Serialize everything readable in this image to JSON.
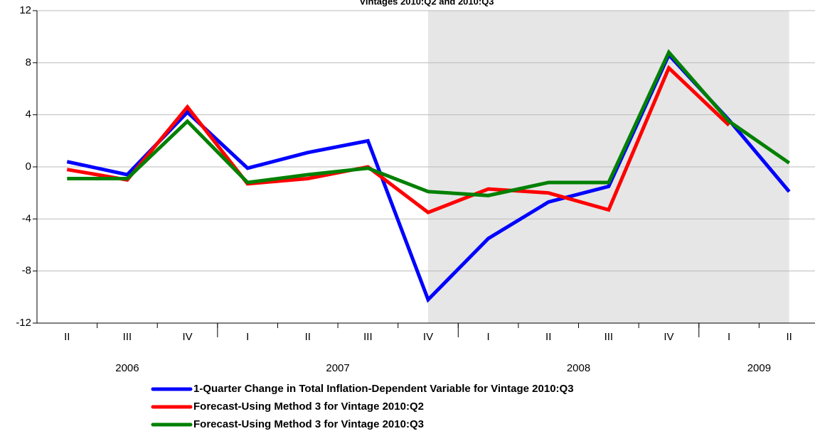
{
  "chart_data": {
    "type": "line",
    "title": "Vintages 2010:Q2 and 2010:Q3",
    "categories": [
      "II",
      "III",
      "IV",
      "I",
      "II",
      "III",
      "IV",
      "I",
      "II",
      "III",
      "IV",
      "I",
      "II"
    ],
    "years": [
      {
        "label": "2006",
        "quarters": 3
      },
      {
        "label": "2007",
        "quarters": 4
      },
      {
        "label": "2008",
        "quarters": 4
      },
      {
        "label": "2009",
        "quarters": 2
      }
    ],
    "shaded": {
      "from": 6,
      "to": 12,
      "color": "#e6e6e6"
    },
    "series": [
      {
        "name": "1-Quarter Change in Total Inflation-Dependent Variable for Vintage 2010:Q3",
        "color": "#0000ff",
        "values": [
          0.4,
          -0.6,
          4.2,
          -0.1,
          1.1,
          2.0,
          -10.2,
          -5.5,
          -2.7,
          -1.5,
          8.6,
          3.6,
          -1.9
        ]
      },
      {
        "name": "Forecast-Using Method 3 for Vintage 2010:Q2",
        "color": "#ff0000",
        "values": [
          -0.2,
          -1.0,
          4.6,
          -1.3,
          -0.9,
          0.0,
          -3.5,
          -1.7,
          -2.0,
          -3.3,
          7.6,
          3.2,
          null
        ]
      },
      {
        "name": "Forecast-Using Method 3 for Vintage 2010:Q3",
        "color": "#008000",
        "values": [
          -0.9,
          -0.9,
          3.5,
          -1.2,
          -0.6,
          -0.1,
          -1.9,
          -2.2,
          -1.2,
          -1.2,
          8.8,
          3.5,
          0.3
        ]
      }
    ],
    "ylim": [
      -12,
      12
    ],
    "yticks": [
      -12,
      -8,
      -4,
      0,
      4,
      8,
      12
    ],
    "grid": true
  }
}
